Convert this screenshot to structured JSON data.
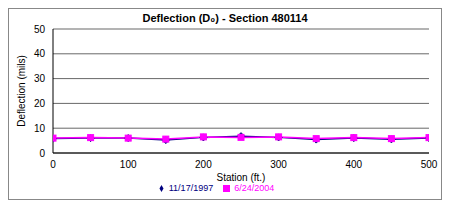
{
  "chart_data": {
    "type": "line",
    "title": "Deflection (D₀) - Section 480114",
    "x_label": "Station (ft.)",
    "y_label": "Deflection (mils)",
    "x": [
      0,
      50,
      100,
      150,
      200,
      250,
      300,
      350,
      400,
      450,
      500
    ],
    "series": [
      {
        "name": "11/17/1997",
        "color": "#000080",
        "marker": "diamond",
        "values": [
          5.8,
          6.0,
          6.0,
          5.2,
          6.3,
          6.8,
          6.3,
          5.4,
          6.0,
          5.5,
          6.0
        ]
      },
      {
        "name": "6/24/2004",
        "color": "#ff00ff",
        "marker": "square",
        "values": [
          6.0,
          6.2,
          6.0,
          5.6,
          6.5,
          6.3,
          6.5,
          5.8,
          6.2,
          5.8,
          6.2
        ]
      }
    ],
    "xlim": [
      0,
      500
    ],
    "xticks": [
      0,
      100,
      200,
      300,
      400,
      500
    ],
    "ylim": [
      0,
      50
    ],
    "yticks": [
      0,
      10,
      20,
      30,
      40,
      50
    ],
    "grid": true,
    "legend": "bottom"
  }
}
